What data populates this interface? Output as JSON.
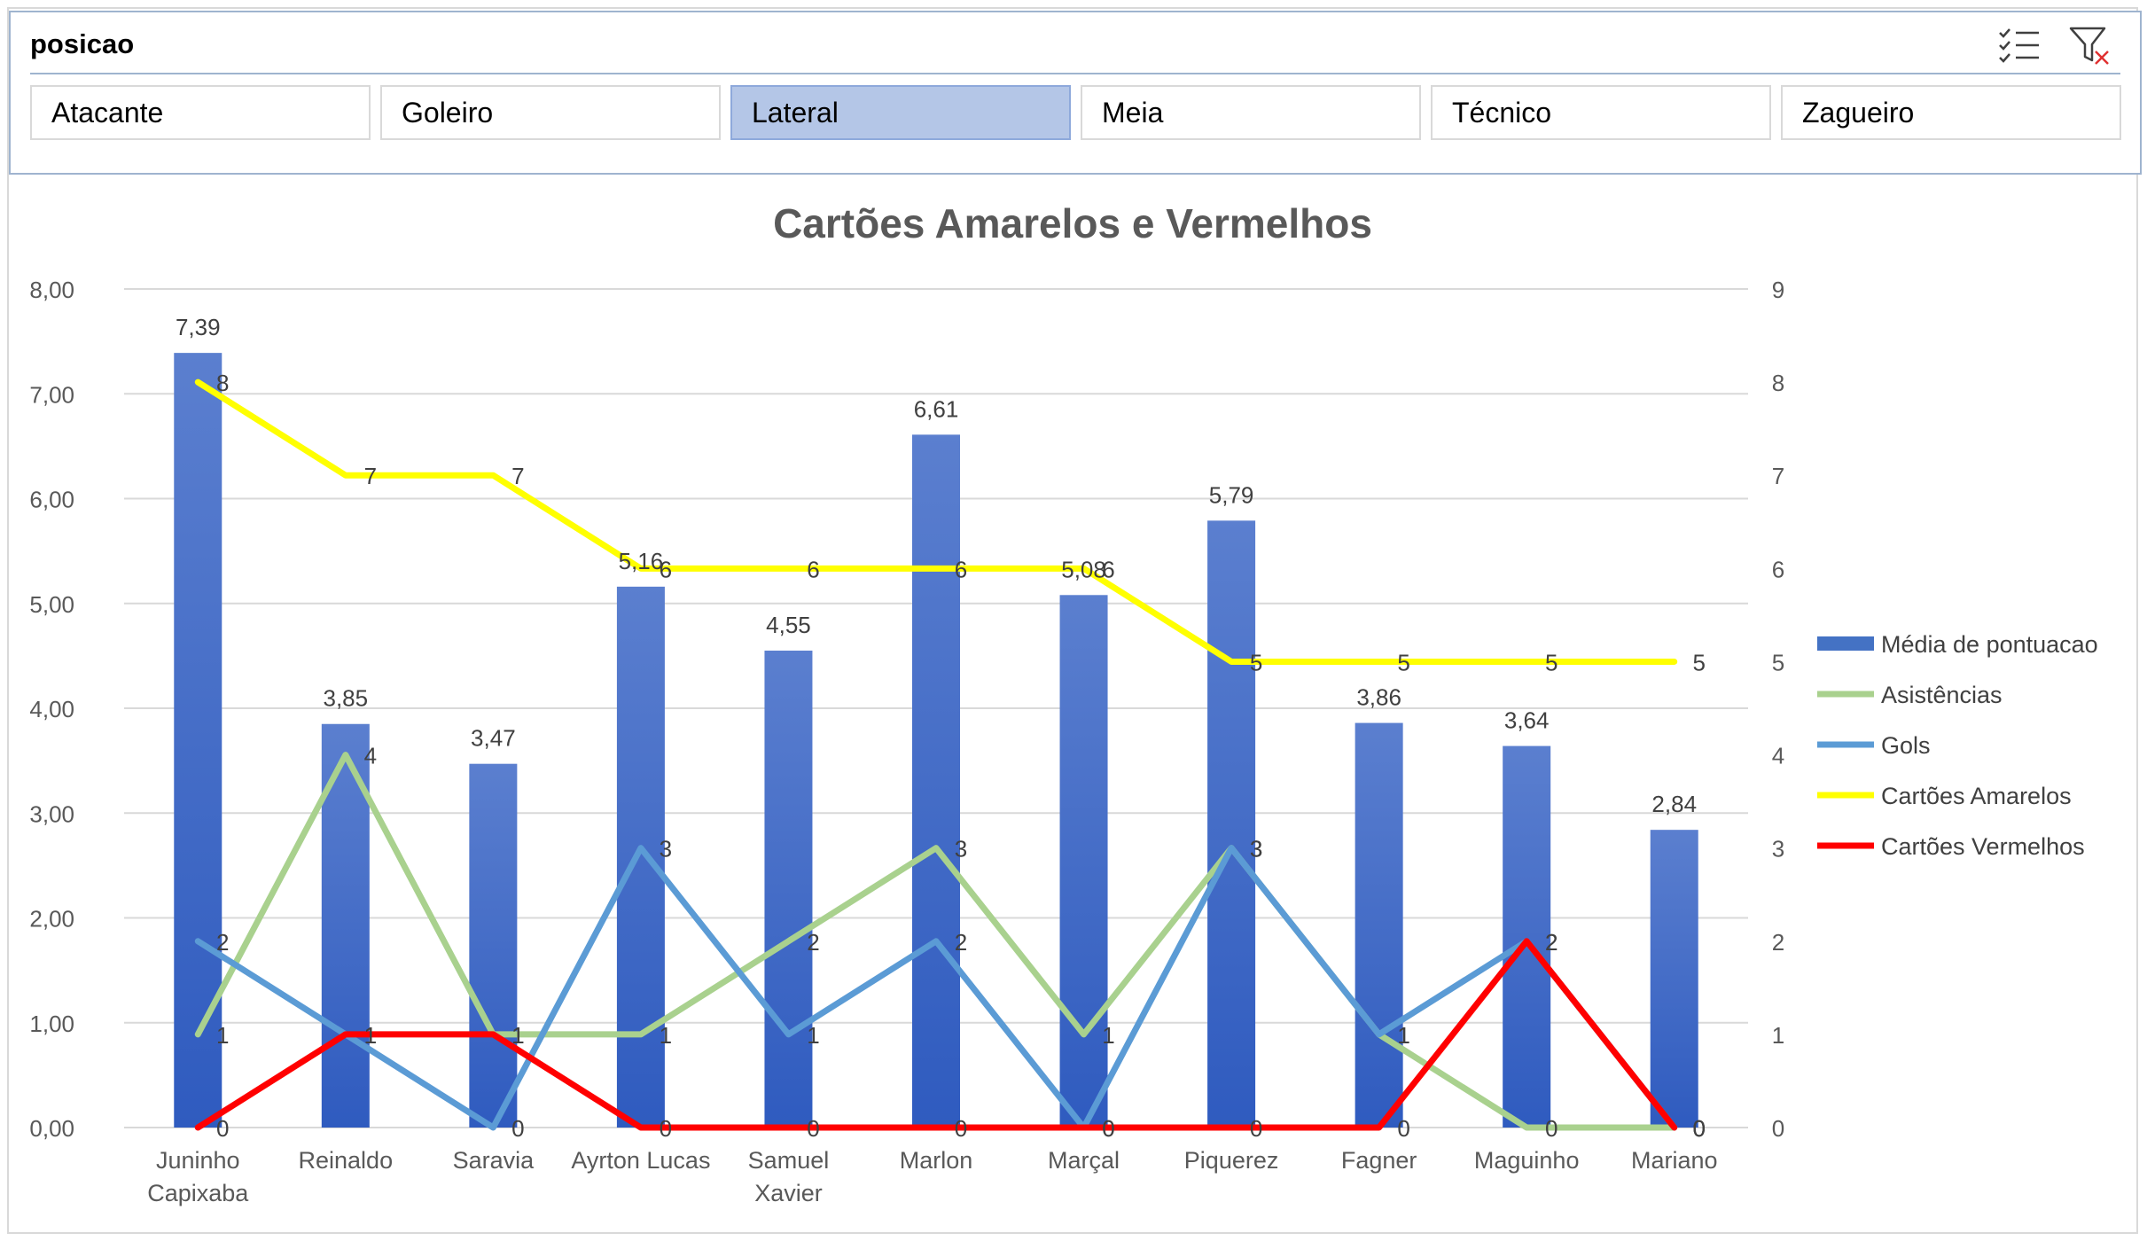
{
  "slicer": {
    "title": "posicao",
    "selected": "Lateral",
    "options": [
      "Atacante",
      "Goleiro",
      "Lateral",
      "Meia",
      "Técnico",
      "Zagueiro"
    ],
    "icons": [
      "multi-select-icon",
      "clear-filter-icon"
    ]
  },
  "chart_data": {
    "type": "bar",
    "title": "Cartões Amarelos e Vermelhos",
    "categories": [
      "Juninho Capixaba",
      "Reinaldo",
      "Saravia",
      "Ayrton Lucas",
      "Samuel Xavier",
      "Marlon",
      "Marçal",
      "Piquerez",
      "Fagner",
      "Maguinho",
      "Mariano"
    ],
    "y_left": {
      "ticks": [
        "0,00",
        "1,00",
        "2,00",
        "3,00",
        "4,00",
        "5,00",
        "6,00",
        "7,00",
        "8,00"
      ],
      "ylim": [
        0,
        8
      ]
    },
    "y_right": {
      "ticks": [
        "0",
        "1",
        "2",
        "3",
        "4",
        "5",
        "6",
        "7",
        "8",
        "9"
      ],
      "ylim": [
        0,
        9
      ]
    },
    "grid": true,
    "legend_position": "right",
    "series": [
      {
        "name": "Média de pontuacao",
        "type": "bar",
        "axis": "left",
        "color": "#4472c4",
        "values": [
          7.39,
          3.85,
          3.47,
          5.16,
          4.55,
          6.61,
          5.08,
          5.79,
          3.86,
          3.64,
          2.84
        ],
        "labels": [
          "7,39",
          "3,85",
          "3,47",
          "5,16",
          "4,55",
          "6,61",
          "5,08",
          "5,79",
          "3,86",
          "3,64",
          "2,84"
        ]
      },
      {
        "name": "Asistências",
        "type": "line",
        "axis": "right",
        "color": "#a9d18e",
        "values": [
          1,
          4,
          1,
          1,
          2,
          3,
          1,
          3,
          1,
          0,
          0
        ]
      },
      {
        "name": "Gols",
        "type": "line",
        "axis": "right",
        "color": "#5b9bd5",
        "values": [
          2,
          1,
          0,
          3,
          1,
          2,
          0,
          3,
          1,
          2,
          0
        ]
      },
      {
        "name": "Cartões Amarelos",
        "type": "line",
        "axis": "right",
        "color": "#ffff00",
        "values": [
          8,
          7,
          7,
          6,
          6,
          6,
          6,
          5,
          5,
          5,
          5
        ]
      },
      {
        "name": "Cartões Vermelhos",
        "type": "line",
        "axis": "right",
        "color": "#ff0000",
        "values": [
          0,
          1,
          1,
          0,
          0,
          0,
          0,
          0,
          0,
          2,
          0
        ]
      }
    ]
  }
}
